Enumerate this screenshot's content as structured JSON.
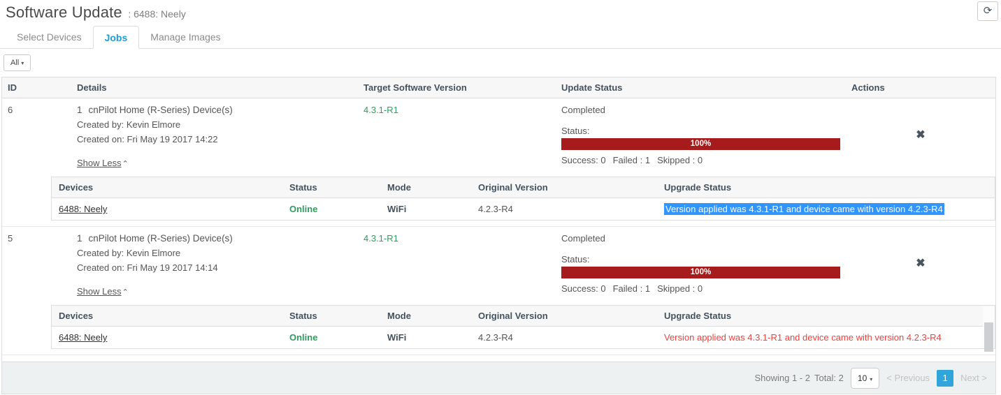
{
  "header": {
    "title": "Software Update",
    "subtitle": ": 6488: Neely"
  },
  "icons": {
    "refresh": "⟳",
    "caret_down": "▾",
    "caret_up": "⌃",
    "close": "✖"
  },
  "tabs": [
    {
      "label": "Select Devices"
    },
    {
      "label": "Jobs"
    },
    {
      "label": "Manage Images"
    }
  ],
  "filter": {
    "selected": "All"
  },
  "table": {
    "columns": {
      "id": "ID",
      "details": "Details",
      "target": "Target Software Version",
      "update": "Update Status",
      "actions": "Actions"
    },
    "device_columns": {
      "devices": "Devices",
      "status": "Status",
      "mode": "Mode",
      "original": "Original Version",
      "upgrade": "Upgrade Status"
    }
  },
  "jobs": [
    {
      "id": "6",
      "device_count": "1",
      "device_type": "cnPilot Home (R-Series) Device(s)",
      "created_by": "Created by: Kevin Elmore",
      "created_on": "Created on: Fri May 19 2017 14:22",
      "show_less": "Show Less",
      "target_version": "4.3.1-R1",
      "state": "Completed",
      "status_label": "Status:",
      "progress_pct": "100%",
      "progress_value": 100,
      "success": "Success: 0",
      "failed": "Failed : 1",
      "skipped": "Skipped : 0",
      "device": {
        "name": "6488: Neely",
        "status": "Online",
        "mode": "WiFi",
        "original_version": "4.2.3-R4",
        "upgrade_status": "Version applied was 4.3.1-R1 and device came with version 4.2.3-R4"
      }
    },
    {
      "id": "5",
      "device_count": "1",
      "device_type": "cnPilot Home (R-Series) Device(s)",
      "created_by": "Created by: Kevin Elmore",
      "created_on": "Created on: Fri May 19 2017 14:14",
      "show_less": "Show Less",
      "target_version": "4.3.1-R1",
      "state": "Completed",
      "status_label": "Status:",
      "progress_pct": "100%",
      "progress_value": 100,
      "success": "Success: 0",
      "failed": "Failed : 1",
      "skipped": "Skipped : 0",
      "device": {
        "name": "6488: Neely",
        "status": "Online",
        "mode": "WiFi",
        "original_version": "4.2.3-R4",
        "upgrade_status": "Version applied was 4.3.1-R1 and device came with version 4.2.3-R4"
      }
    }
  ],
  "footer": {
    "showing": "Showing 1 - 2",
    "total": "Total: 2",
    "page_size": "10",
    "previous": "< Previous",
    "current_page": "1",
    "next": "Next >"
  },
  "colors": {
    "accent_blue": "#1f9cd5",
    "green": "#2d9e5f",
    "progress_red": "#a61c1c",
    "error_red": "#ee413c",
    "selection_blue": "#3295fe",
    "pagination_blue": "#30a5dc"
  }
}
